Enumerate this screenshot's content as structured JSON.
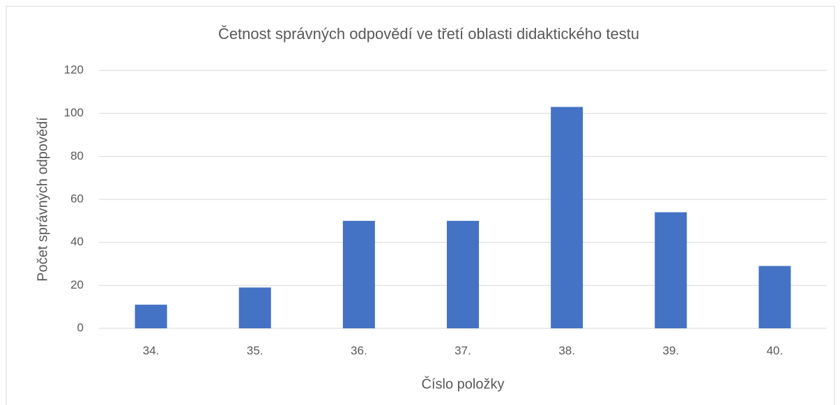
{
  "chart_data": {
    "type": "bar",
    "title": "Četnost správných odpovědí ve třetí oblasti didaktického testu",
    "x_label": "Číslo položky",
    "y_label": "Počet správných odpovědí",
    "categories": [
      "34.",
      "35.",
      "36.",
      "37.",
      "38.",
      "39.",
      "40."
    ],
    "values": [
      11,
      19,
      50,
      50,
      103,
      54,
      29
    ],
    "color": "#4472c4",
    "ylim": [
      0,
      120
    ],
    "yticks": [
      0,
      20,
      40,
      60,
      80,
      100,
      120
    ],
    "grid": true
  }
}
